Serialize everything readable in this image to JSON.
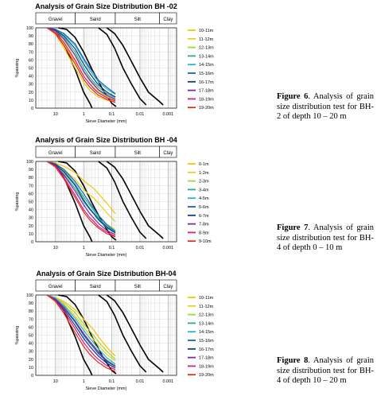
{
  "charts": [
    {
      "title": "Analysis of Grain Size Distribution BH -02",
      "xlabel": "Sieve Diameter (mm)",
      "ylabel": "%passing",
      "caption_label": "Figure 6",
      "caption_text": ". Analysis of grain size distribution test for BH-2 of depth 10 – 20 m"
    },
    {
      "title": "Analysis of Grain Size Distribution BH -04",
      "xlabel": "Sieve Diameter (mm)",
      "ylabel": "%passing",
      "caption_label": "Figure 7",
      "caption_text": ". Analysis of grain size distribution test for BH-4 of depth 0 – 10 m"
    },
    {
      "title": "Analysis of Grain Size Distribution BH-04",
      "xlabel": "Sieve Diameter (mm)",
      "ylabel": "%passing",
      "caption_label": "Figure 8",
      "caption_text": ". Analysis of grain size distribution test for BH-4 of depth 10 – 20 m"
    }
  ],
  "chart_data": [
    {
      "type": "line",
      "title": "Analysis of Grain Size Distribution BH -02",
      "xlabel": "Sieve Diameter (mm)",
      "ylabel": "%passing",
      "x_scale": "log-reversed",
      "xlim": [
        50,
        0.0005
      ],
      "ylim": [
        0,
        100
      ],
      "x_ticks": [
        "10",
        "1",
        "0.1",
        "0.01",
        "0.001"
      ],
      "y_ticks": [
        "0",
        "10",
        "20",
        "30",
        "40",
        "50",
        "60",
        "70",
        "80",
        "90",
        "100"
      ],
      "zones": [
        "Gravel",
        "Sand",
        "Silt",
        "Clay"
      ],
      "grid": true,
      "legend": "right",
      "x": [
        20,
        10,
        5,
        2,
        1,
        0.6,
        0.425,
        0.3,
        0.15,
        0.075
      ],
      "series": [
        {
          "name": "10-11m",
          "color": "#f5c400",
          "values": [
            100,
            92,
            75,
            50,
            32,
            22,
            18,
            14,
            10,
            8
          ]
        },
        {
          "name": "11-12m",
          "color": "#e0d21e",
          "values": [
            100,
            95,
            80,
            58,
            40,
            30,
            25,
            20,
            14,
            10
          ]
        },
        {
          "name": "12-13m",
          "color": "#a6d23a",
          "values": [
            100,
            96,
            85,
            65,
            45,
            34,
            28,
            22,
            15,
            11
          ]
        },
        {
          "name": "13-14m",
          "color": "#23b08a",
          "values": [
            100,
            97,
            88,
            70,
            50,
            38,
            32,
            26,
            18,
            13
          ]
        },
        {
          "name": "14-15m",
          "color": "#2ab7c9",
          "values": [
            100,
            98,
            92,
            78,
            60,
            47,
            40,
            33,
            24,
            17
          ]
        },
        {
          "name": "15-16m",
          "color": "#1f5fb5",
          "values": [
            100,
            98,
            93,
            80,
            62,
            50,
            43,
            35,
            26,
            18
          ]
        },
        {
          "name": "16-17m",
          "color": "#123a78",
          "values": [
            100,
            97,
            90,
            74,
            55,
            43,
            36,
            29,
            20,
            14
          ]
        },
        {
          "name": "17-18m",
          "color": "#7a2aa8",
          "values": [
            100,
            96,
            86,
            66,
            46,
            35,
            29,
            23,
            16,
            11
          ]
        },
        {
          "name": "18-19m",
          "color": "#d81e7a",
          "values": [
            100,
            94,
            82,
            60,
            40,
            30,
            24,
            19,
            13,
            9
          ]
        },
        {
          "name": "19-20m",
          "color": "#e22b1f",
          "values": [
            100,
            93,
            78,
            55,
            36,
            26,
            21,
            16,
            11,
            7
          ]
        }
      ],
      "boundary_curves": [
        {
          "x": [
            20,
            10,
            5,
            2,
            1,
            0.6,
            0.5
          ],
          "values": [
            100,
            96,
            80,
            48,
            20,
            6,
            0
          ]
        },
        {
          "x": [
            8,
            4,
            2,
            1,
            0.5,
            0.2,
            0.1,
            0.07
          ],
          "values": [
            100,
            98,
            88,
            70,
            48,
            22,
            6,
            2
          ]
        },
        {
          "x": [
            0.3,
            0.15,
            0.08,
            0.04,
            0.02,
            0.01,
            0.006
          ],
          "values": [
            100,
            92,
            75,
            50,
            30,
            12,
            4
          ]
        },
        {
          "x": [
            0.15,
            0.08,
            0.04,
            0.02,
            0.01,
            0.005,
            0.002,
            0.0015
          ],
          "values": [
            100,
            93,
            78,
            58,
            38,
            20,
            8,
            4
          ]
        }
      ]
    },
    {
      "type": "line",
      "title": "Analysis of Grain Size Distribution BH -04",
      "xlabel": "Sieve Diameter (mm)",
      "ylabel": "%passing",
      "x_scale": "log-reversed",
      "xlim": [
        50,
        0.0005
      ],
      "ylim": [
        0,
        100
      ],
      "x_ticks": [
        "10",
        "1",
        "0.1",
        "0.01",
        "0.001"
      ],
      "y_ticks": [
        "0",
        "10",
        "20",
        "30",
        "40",
        "50",
        "60",
        "70",
        "80",
        "90",
        "100"
      ],
      "zones": [
        "Gravel",
        "Sand",
        "Silt",
        "Clay"
      ],
      "grid": true,
      "legend": "right",
      "x": [
        20,
        10,
        5,
        2,
        1,
        0.6,
        0.425,
        0.3,
        0.15,
        0.075
      ],
      "series": [
        {
          "name": "0-1m",
          "color": "#f5c400",
          "values": [
            100,
            98,
            94,
            86,
            76,
            70,
            66,
            60,
            48,
            35
          ]
        },
        {
          "name": "1-2m",
          "color": "#e0d21e",
          "values": [
            100,
            97,
            90,
            78,
            65,
            58,
            54,
            48,
            36,
            25
          ]
        },
        {
          "name": "2-3m",
          "color": "#a6d23a",
          "values": [
            100,
            96,
            86,
            70,
            55,
            46,
            40,
            33,
            22,
            15
          ]
        },
        {
          "name": "3-4m",
          "color": "#23b08a",
          "values": [
            100,
            95,
            84,
            66,
            50,
            40,
            34,
            27,
            17,
            11
          ]
        },
        {
          "name": "4-5m",
          "color": "#2ab7c9",
          "values": [
            100,
            96,
            88,
            72,
            56,
            45,
            38,
            30,
            19,
            12
          ]
        },
        {
          "name": "5-6m",
          "color": "#1f5fb5",
          "values": [
            100,
            97,
            90,
            75,
            60,
            48,
            41,
            33,
            21,
            13
          ]
        },
        {
          "name": "6-7m",
          "color": "#123a78",
          "values": [
            100,
            96,
            87,
            70,
            52,
            41,
            35,
            28,
            18,
            11
          ]
        },
        {
          "name": "7-8m",
          "color": "#7a2aa8",
          "values": [
            100,
            95,
            83,
            63,
            46,
            35,
            29,
            23,
            14,
            9
          ]
        },
        {
          "name": "8-9m",
          "color": "#d81e7a",
          "values": [
            100,
            94,
            80,
            58,
            40,
            30,
            25,
            19,
            12,
            7
          ]
        },
        {
          "name": "9-10m",
          "color": "#e22b1f",
          "values": [
            100,
            93,
            78,
            55,
            37,
            27,
            22,
            17,
            10,
            6
          ]
        }
      ],
      "boundary_curves": [
        {
          "x": [
            20,
            10,
            5,
            2,
            1,
            0.6,
            0.5
          ],
          "values": [
            100,
            96,
            80,
            48,
            20,
            6,
            0
          ]
        },
        {
          "x": [
            8,
            4,
            2,
            1,
            0.5,
            0.2,
            0.1,
            0.07
          ],
          "values": [
            100,
            98,
            88,
            70,
            48,
            22,
            6,
            2
          ]
        },
        {
          "x": [
            0.3,
            0.15,
            0.08,
            0.04,
            0.02,
            0.01,
            0.006
          ],
          "values": [
            100,
            92,
            75,
            50,
            30,
            12,
            4
          ]
        },
        {
          "x": [
            0.15,
            0.08,
            0.04,
            0.02,
            0.01,
            0.005,
            0.002,
            0.0015
          ],
          "values": [
            100,
            93,
            78,
            58,
            38,
            20,
            8,
            4
          ]
        }
      ]
    },
    {
      "type": "line",
      "title": "Analysis of Grain Size Distribution BH-04",
      "xlabel": "Sieve Diameter (mm)",
      "ylabel": "%passing",
      "x_scale": "log-reversed",
      "xlim": [
        50,
        0.0005
      ],
      "ylim": [
        0,
        100
      ],
      "x_ticks": [
        "10",
        "1",
        "0.1",
        "0.01",
        "0.001"
      ],
      "y_ticks": [
        "0",
        "10",
        "20",
        "30",
        "40",
        "50",
        "60",
        "70",
        "80",
        "90",
        "100"
      ],
      "zones": [
        "Gravel",
        "Sand",
        "Silt",
        "Clay"
      ],
      "grid": true,
      "legend": "right",
      "x": [
        20,
        10,
        5,
        2,
        1,
        0.6,
        0.425,
        0.3,
        0.15,
        0.075
      ],
      "series": [
        {
          "name": "10-11m",
          "color": "#f5c400",
          "values": [
            100,
            97,
            92,
            82,
            70,
            62,
            56,
            48,
            35,
            24
          ]
        },
        {
          "name": "11-12m",
          "color": "#e0d21e",
          "values": [
            100,
            96,
            88,
            74,
            60,
            50,
            44,
            37,
            26,
            18
          ]
        },
        {
          "name": "12-13m",
          "color": "#a6d23a",
          "values": [
            100,
            97,
            90,
            78,
            64,
            55,
            49,
            42,
            30,
            20
          ]
        },
        {
          "name": "13-14m",
          "color": "#23b08a",
          "values": [
            100,
            95,
            85,
            68,
            52,
            42,
            36,
            29,
            19,
            12
          ]
        },
        {
          "name": "14-15m",
          "color": "#2ab7c9",
          "values": [
            100,
            96,
            87,
            71,
            56,
            46,
            40,
            33,
            22,
            14
          ]
        },
        {
          "name": "15-16m",
          "color": "#1f5fb5",
          "values": [
            100,
            95,
            84,
            66,
            50,
            40,
            34,
            27,
            17,
            11
          ]
        },
        {
          "name": "16-17m",
          "color": "#123a78",
          "values": [
            100,
            94,
            82,
            62,
            46,
            36,
            30,
            24,
            15,
            9
          ]
        },
        {
          "name": "17-18m",
          "color": "#7a2aa8",
          "values": [
            100,
            95,
            85,
            67,
            52,
            42,
            36,
            29,
            18,
            11
          ]
        },
        {
          "name": "18-19m",
          "color": "#d81e7a",
          "values": [
            100,
            93,
            80,
            58,
            41,
            31,
            25,
            20,
            12,
            7
          ]
        },
        {
          "name": "19-20m",
          "color": "#e22b1f",
          "values": [
            100,
            92,
            77,
            53,
            36,
            26,
            21,
            16,
            9,
            5
          ]
        }
      ],
      "boundary_curves": [
        {
          "x": [
            20,
            10,
            5,
            2,
            1,
            0.6,
            0.5
          ],
          "values": [
            100,
            96,
            80,
            48,
            20,
            6,
            0
          ]
        },
        {
          "x": [
            8,
            4,
            2,
            1,
            0.5,
            0.2,
            0.1,
            0.07
          ],
          "values": [
            100,
            98,
            88,
            70,
            48,
            22,
            6,
            2
          ]
        },
        {
          "x": [
            0.3,
            0.15,
            0.08,
            0.04,
            0.02,
            0.01,
            0.006
          ],
          "values": [
            100,
            92,
            75,
            50,
            30,
            12,
            4
          ]
        },
        {
          "x": [
            0.15,
            0.08,
            0.04,
            0.02,
            0.01,
            0.005,
            0.002,
            0.0015
          ],
          "values": [
            100,
            93,
            78,
            58,
            38,
            20,
            8,
            4
          ]
        }
      ]
    }
  ]
}
